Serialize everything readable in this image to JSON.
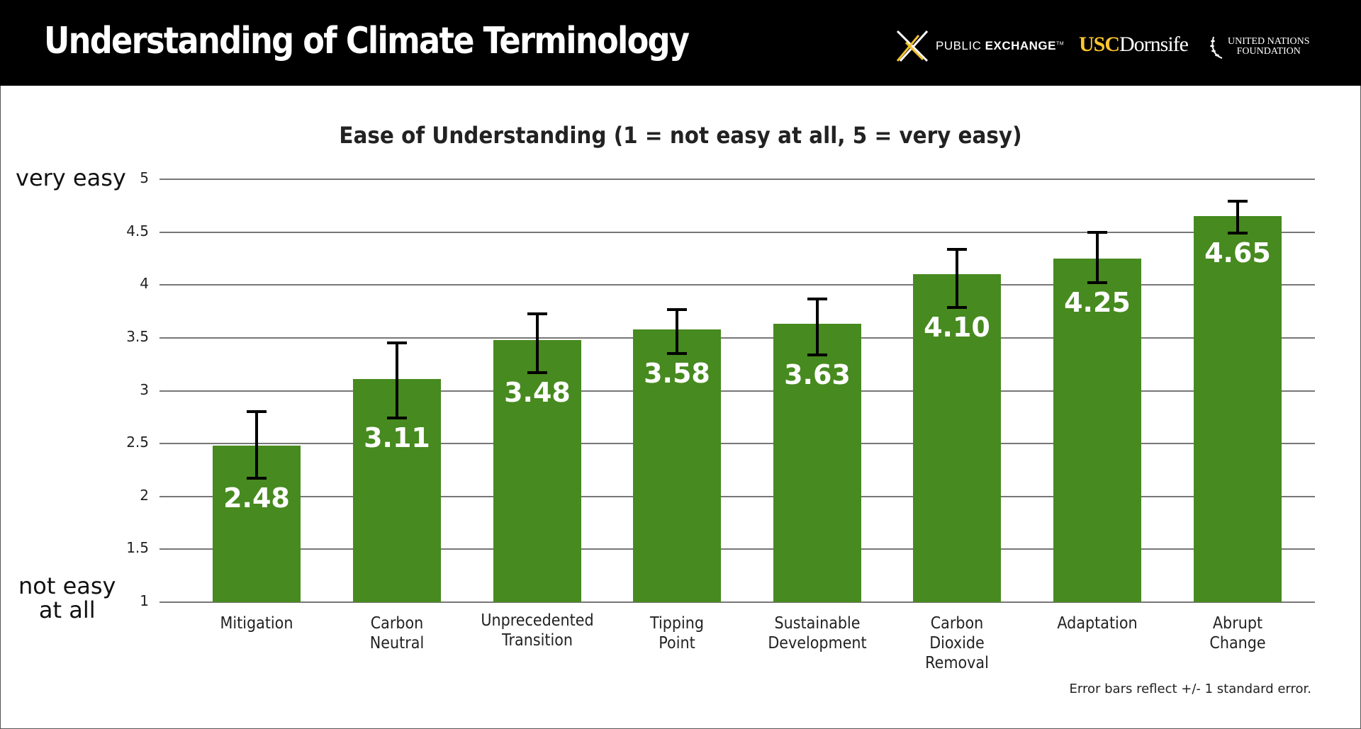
{
  "header": {
    "title": "Understanding of Climate Terminology",
    "logos": {
      "public_exchange": {
        "light": "PUBLIC ",
        "bold": "EXCHANGE",
        "tm": "TM"
      },
      "usc": {
        "usc": "USC",
        "dornsife": "Dornsife"
      },
      "unf": {
        "line1": "UNITED NATIONS",
        "line2": "FOUNDATION"
      }
    }
  },
  "colors": {
    "bar": "#478a1f",
    "header_bg": "#000000",
    "usc_gold": "#ffc72c",
    "pe_yellow": "#f2c12e"
  },
  "axis": {
    "top_label": "very easy",
    "bottom_label_1": "not easy",
    "bottom_label_2": "at all"
  },
  "footnote": "Error bars reflect +/- 1 standard error.",
  "chart_data": {
    "type": "bar",
    "title": "Ease of Understanding (1 = not easy at all, 5 = very easy)",
    "xlabel": "",
    "ylabel": "",
    "ylim": [
      1,
      5
    ],
    "yticks": [
      "1",
      "1.5",
      "2",
      "2.5",
      "3",
      "3.5",
      "4",
      "4.5",
      "5"
    ],
    "ytick_annotations": {
      "5": "very easy",
      "1": "not easy at all"
    },
    "grid": true,
    "legend": null,
    "categories": [
      "Mitigation",
      "Carbon Neutral",
      "Unprecedented Transition",
      "Tipping Point",
      "Sustainable Development",
      "Carbon Dioxide Removal",
      "Adaptation",
      "Abrupt Change"
    ],
    "category_lines": [
      [
        "Mitigation"
      ],
      [
        "Carbon",
        "Neutral"
      ],
      [
        "Unprecedented",
        "Transition"
      ],
      [
        "Tipping",
        "Point"
      ],
      [
        "Sustainable",
        "Development"
      ],
      [
        "Carbon",
        "Dioxide",
        "Removal"
      ],
      [
        "Adaptation"
      ],
      [
        "Abrupt",
        "Change"
      ]
    ],
    "values": [
      2.48,
      3.11,
      3.48,
      3.58,
      3.63,
      4.1,
      4.25,
      4.65
    ],
    "value_labels": [
      "2.48",
      "3.11",
      "3.48",
      "3.58",
      "3.63",
      "4.10",
      "4.25",
      "4.65"
    ],
    "error_low": [
      2.17,
      2.74,
      3.17,
      3.35,
      3.34,
      3.79,
      4.02,
      4.49
    ],
    "error_high": [
      2.8,
      3.45,
      3.73,
      3.77,
      3.87,
      4.34,
      4.5,
      4.79
    ],
    "annotations": [
      "Error bars reflect +/- 1 standard error."
    ]
  }
}
